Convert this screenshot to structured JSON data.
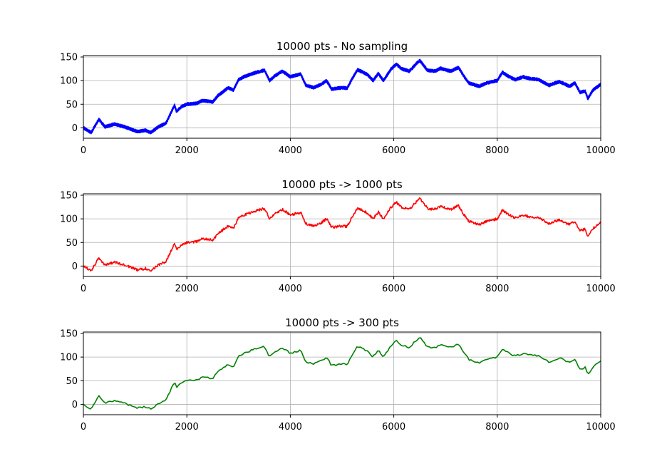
{
  "chart_data": [
    {
      "type": "line",
      "title": "10000 pts - No sampling",
      "color": "#0000ff",
      "points": 10000,
      "xlim": [
        0,
        10000
      ],
      "ylim": [
        -22,
        153
      ],
      "grid": true,
      "xticks": [
        0,
        2000,
        4000,
        6000,
        8000,
        10000
      ],
      "yticks": [
        0,
        50,
        100,
        150
      ],
      "xlabel": "",
      "ylabel": "",
      "series": [
        {
          "name": "No sampling",
          "values": [
            [
              0,
              0
            ],
            [
              150,
              -10
            ],
            [
              300,
              18
            ],
            [
              420,
              2
            ],
            [
              600,
              8
            ],
            [
              800,
              2
            ],
            [
              900,
              -2
            ],
            [
              1050,
              -8
            ],
            [
              1200,
              -5
            ],
            [
              1300,
              -10
            ],
            [
              1450,
              2
            ],
            [
              1600,
              10
            ],
            [
              1760,
              48
            ],
            [
              1800,
              35
            ],
            [
              1900,
              45
            ],
            [
              2000,
              50
            ],
            [
              2200,
              52
            ],
            [
              2300,
              58
            ],
            [
              2500,
              55
            ],
            [
              2600,
              68
            ],
            [
              2800,
              85
            ],
            [
              2900,
              80
            ],
            [
              3000,
              102
            ],
            [
              3100,
              108
            ],
            [
              3300,
              116
            ],
            [
              3500,
              122
            ],
            [
              3600,
              100
            ],
            [
              3700,
              110
            ],
            [
              3850,
              120
            ],
            [
              4000,
              108
            ],
            [
              4200,
              114
            ],
            [
              4300,
              90
            ],
            [
              4450,
              85
            ],
            [
              4600,
              92
            ],
            [
              4700,
              100
            ],
            [
              4800,
              82
            ],
            [
              5000,
              85
            ],
            [
              5100,
              84
            ],
            [
              5200,
              105
            ],
            [
              5300,
              123
            ],
            [
              5400,
              118
            ],
            [
              5500,
              112
            ],
            [
              5600,
              100
            ],
            [
              5700,
              115
            ],
            [
              5800,
              100
            ],
            [
              5950,
              125
            ],
            [
              6050,
              135
            ],
            [
              6150,
              125
            ],
            [
              6300,
              120
            ],
            [
              6500,
              143
            ],
            [
              6650,
              122
            ],
            [
              6800,
              120
            ],
            [
              6900,
              126
            ],
            [
              7100,
              120
            ],
            [
              7250,
              128
            ],
            [
              7350,
              110
            ],
            [
              7450,
              95
            ],
            [
              7650,
              88
            ],
            [
              7800,
              95
            ],
            [
              8000,
              100
            ],
            [
              8100,
              118
            ],
            [
              8200,
              110
            ],
            [
              8350,
              102
            ],
            [
              8500,
              108
            ],
            [
              8600,
              105
            ],
            [
              8800,
              102
            ],
            [
              9000,
              90
            ],
            [
              9200,
              98
            ],
            [
              9400,
              88
            ],
            [
              9500,
              95
            ],
            [
              9600,
              75
            ],
            [
              9700,
              78
            ],
            [
              9750,
              62
            ],
            [
              9850,
              80
            ],
            [
              9950,
              88
            ],
            [
              10000,
              92
            ]
          ]
        }
      ]
    },
    {
      "type": "line",
      "title": "10000 pts -> 1000 pts",
      "color": "#ff0000",
      "points": 1000,
      "xlim": [
        0,
        10000
      ],
      "ylim": [
        -22,
        153
      ],
      "grid": true,
      "xticks": [
        0,
        2000,
        4000,
        6000,
        8000,
        10000
      ],
      "yticks": [
        0,
        50,
        100,
        150
      ],
      "xlabel": "",
      "ylabel": "",
      "series": [
        {
          "name": "1000 pts",
          "values": [
            [
              0,
              0
            ],
            [
              150,
              -10
            ],
            [
              300,
              18
            ],
            [
              420,
              2
            ],
            [
              600,
              8
            ],
            [
              800,
              2
            ],
            [
              900,
              -2
            ],
            [
              1050,
              -8
            ],
            [
              1200,
              -5
            ],
            [
              1300,
              -10
            ],
            [
              1450,
              2
            ],
            [
              1600,
              10
            ],
            [
              1760,
              48
            ],
            [
              1800,
              35
            ],
            [
              1900,
              45
            ],
            [
              2000,
              50
            ],
            [
              2200,
              52
            ],
            [
              2300,
              58
            ],
            [
              2500,
              55
            ],
            [
              2600,
              68
            ],
            [
              2800,
              85
            ],
            [
              2900,
              80
            ],
            [
              3000,
              102
            ],
            [
              3100,
              108
            ],
            [
              3300,
              116
            ],
            [
              3500,
              122
            ],
            [
              3600,
              100
            ],
            [
              3700,
              110
            ],
            [
              3850,
              120
            ],
            [
              4000,
              108
            ],
            [
              4200,
              114
            ],
            [
              4300,
              90
            ],
            [
              4450,
              85
            ],
            [
              4600,
              92
            ],
            [
              4700,
              100
            ],
            [
              4800,
              82
            ],
            [
              5000,
              85
            ],
            [
              5100,
              84
            ],
            [
              5200,
              105
            ],
            [
              5300,
              123
            ],
            [
              5400,
              118
            ],
            [
              5500,
              112
            ],
            [
              5600,
              100
            ],
            [
              5700,
              115
            ],
            [
              5800,
              100
            ],
            [
              5950,
              125
            ],
            [
              6050,
              135
            ],
            [
              6150,
              125
            ],
            [
              6300,
              120
            ],
            [
              6500,
              143
            ],
            [
              6650,
              122
            ],
            [
              6800,
              120
            ],
            [
              6900,
              126
            ],
            [
              7100,
              120
            ],
            [
              7250,
              128
            ],
            [
              7350,
              110
            ],
            [
              7450,
              95
            ],
            [
              7650,
              88
            ],
            [
              7800,
              95
            ],
            [
              8000,
              100
            ],
            [
              8100,
              118
            ],
            [
              8200,
              110
            ],
            [
              8350,
              102
            ],
            [
              8500,
              108
            ],
            [
              8600,
              105
            ],
            [
              8800,
              102
            ],
            [
              9000,
              90
            ],
            [
              9200,
              98
            ],
            [
              9400,
              88
            ],
            [
              9500,
              95
            ],
            [
              9600,
              75
            ],
            [
              9700,
              78
            ],
            [
              9750,
              62
            ],
            [
              9850,
              80
            ],
            [
              9950,
              88
            ],
            [
              10000,
              92
            ]
          ]
        }
      ]
    },
    {
      "type": "line",
      "title": "10000 pts -> 300 pts",
      "color": "#008000",
      "points": 300,
      "xlim": [
        0,
        10000
      ],
      "ylim": [
        -22,
        153
      ],
      "grid": true,
      "xticks": [
        0,
        2000,
        4000,
        6000,
        8000,
        10000
      ],
      "yticks": [
        0,
        50,
        100,
        150
      ],
      "xlabel": "",
      "ylabel": "",
      "series": [
        {
          "name": "300 pts",
          "values": [
            [
              0,
              0
            ],
            [
              150,
              -10
            ],
            [
              300,
              18
            ],
            [
              420,
              2
            ],
            [
              600,
              8
            ],
            [
              800,
              2
            ],
            [
              900,
              -2
            ],
            [
              1050,
              -8
            ],
            [
              1200,
              -5
            ],
            [
              1300,
              -10
            ],
            [
              1450,
              2
            ],
            [
              1600,
              10
            ],
            [
              1760,
              48
            ],
            [
              1800,
              35
            ],
            [
              1900,
              45
            ],
            [
              2000,
              50
            ],
            [
              2200,
              52
            ],
            [
              2300,
              58
            ],
            [
              2500,
              55
            ],
            [
              2600,
              68
            ],
            [
              2800,
              85
            ],
            [
              2900,
              80
            ],
            [
              3000,
              102
            ],
            [
              3100,
              108
            ],
            [
              3300,
              116
            ],
            [
              3500,
              122
            ],
            [
              3600,
              100
            ],
            [
              3700,
              110
            ],
            [
              3850,
              120
            ],
            [
              4000,
              108
            ],
            [
              4200,
              114
            ],
            [
              4300,
              90
            ],
            [
              4450,
              85
            ],
            [
              4600,
              92
            ],
            [
              4700,
              100
            ],
            [
              4800,
              82
            ],
            [
              5000,
              85
            ],
            [
              5100,
              84
            ],
            [
              5200,
              105
            ],
            [
              5300,
              123
            ],
            [
              5400,
              118
            ],
            [
              5500,
              112
            ],
            [
              5600,
              100
            ],
            [
              5700,
              115
            ],
            [
              5800,
              100
            ],
            [
              5950,
              125
            ],
            [
              6050,
              135
            ],
            [
              6150,
              125
            ],
            [
              6300,
              120
            ],
            [
              6500,
              143
            ],
            [
              6650,
              122
            ],
            [
              6800,
              120
            ],
            [
              6900,
              126
            ],
            [
              7100,
              120
            ],
            [
              7250,
              128
            ],
            [
              7350,
              110
            ],
            [
              7450,
              95
            ],
            [
              7650,
              88
            ],
            [
              7800,
              95
            ],
            [
              8000,
              100
            ],
            [
              8100,
              118
            ],
            [
              8200,
              110
            ],
            [
              8350,
              102
            ],
            [
              8500,
              108
            ],
            [
              8600,
              105
            ],
            [
              8800,
              102
            ],
            [
              9000,
              90
            ],
            [
              9200,
              98
            ],
            [
              9400,
              88
            ],
            [
              9500,
              95
            ],
            [
              9600,
              75
            ],
            [
              9700,
              78
            ],
            [
              9750,
              62
            ],
            [
              9850,
              80
            ],
            [
              9950,
              88
            ],
            [
              10000,
              92
            ]
          ]
        }
      ]
    }
  ]
}
